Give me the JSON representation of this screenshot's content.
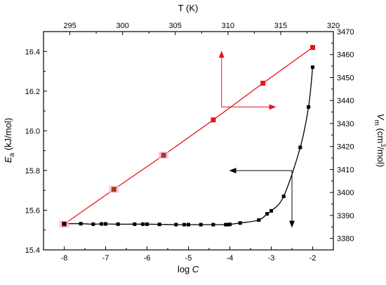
{
  "chart_data": {
    "type": "scatter",
    "x_bottom": {
      "label_main": "log ",
      "label_italic": "C",
      "range": [
        -8.5,
        -1.5
      ],
      "ticks": [
        -8,
        -7,
        -6,
        -5,
        -4,
        -3,
        -2
      ]
    },
    "x_top": {
      "label": "T (K)",
      "range": [
        292.5,
        320
      ],
      "ticks": [
        295,
        300,
        305,
        310,
        315,
        320
      ]
    },
    "y_left": {
      "label_main": "E",
      "label_sub": "a",
      "label_unit": " (kJ/mol)",
      "range": [
        15.4,
        16.5
      ],
      "ticks": [
        15.4,
        15.6,
        15.8,
        16.0,
        16.2,
        16.4
      ],
      "tick_labels": [
        "15.4",
        "15.6",
        "15.8",
        "16.0",
        "16.2",
        "16.4"
      ]
    },
    "y_right": {
      "label_main": "V",
      "label_sub": "m",
      "label_unit": " (cm",
      "label_sup": "3",
      "label_unit2": "/mol)",
      "range": [
        3375,
        3470
      ],
      "ticks": [
        3380,
        3390,
        3400,
        3410,
        3420,
        3430,
        3440,
        3450,
        3460,
        3470
      ]
    },
    "series": [
      {
        "axis": "left",
        "color": "#e8141b",
        "marker": "square",
        "line": "linear",
        "x": [
          -8.0,
          -6.8,
          -5.6,
          -4.4,
          -3.2,
          -2.0
        ],
        "y": [
          15.53,
          15.705,
          15.877,
          16.055,
          16.24,
          16.42
        ],
        "highlight": [
          true,
          true,
          true,
          false,
          false,
          false
        ]
      },
      {
        "axis": "right",
        "color": "#000000",
        "marker": "square",
        "line": "curve",
        "x": [
          -8.0,
          -7.6,
          -7.3,
          -7.1,
          -7.0,
          -6.7,
          -6.3,
          -6.1,
          -6.0,
          -5.7,
          -5.3,
          -5.1,
          -5.0,
          -4.7,
          -4.4,
          -4.1,
          -4.05,
          -4.0,
          -3.75,
          -3.3,
          -3.1,
          -3.0,
          -2.7,
          -2.3,
          -2.1,
          -2.0
        ],
        "y": [
          3386.4,
          3386.4,
          3386.2,
          3386.3,
          3386.3,
          3386.2,
          3386.2,
          3386.2,
          3386.2,
          3386.1,
          3386.0,
          3386.0,
          3386.0,
          3386.0,
          3386.0,
          3386.0,
          3386.0,
          3386.1,
          3386.7,
          3388.0,
          3390.7,
          3392.0,
          3398.3,
          3419.6,
          3437.2,
          3454.5
        ]
      }
    ],
    "annotations": [
      {
        "type": "arrow-to-left-axis",
        "color": "#e8141b",
        "origin": [
          -4.2,
          16.12
        ],
        "up_to_y": 16.4,
        "right_to_x": -2.9
      },
      {
        "type": "arrow-to-right-axis",
        "color": "#000000",
        "origin_x": -2.5,
        "origin_y_right": 3409.5,
        "left_to_x": -4.0,
        "down_to_y_right": 3385
      }
    ],
    "grid": false
  }
}
